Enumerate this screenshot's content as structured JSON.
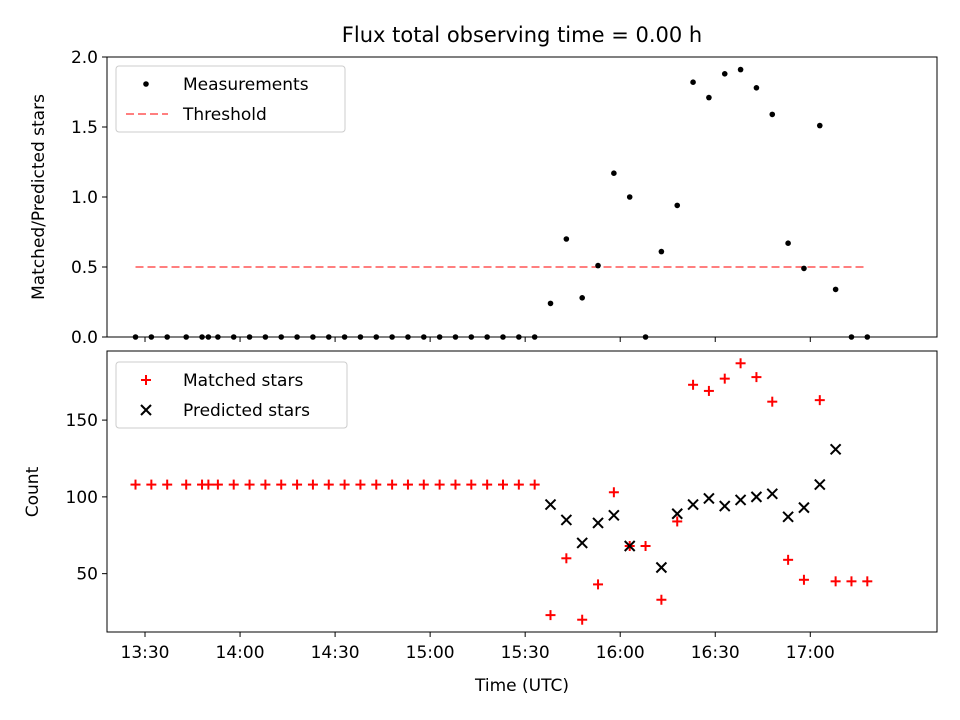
{
  "chart_data": [
    {
      "type": "scatter",
      "title": "Flux total observing time = 0.00 h",
      "ylabel": "Matched/Predicted stars",
      "ylim": [
        0,
        2.0
      ],
      "yticks": [
        "0.0",
        "0.5",
        "1.0",
        "1.5",
        "2.0"
      ],
      "legend": {
        "placement": "top-left",
        "entries": [
          "Measurements",
          "Threshold"
        ]
      },
      "series": [
        {
          "name": "Measurements",
          "color": "#000000",
          "x": [
            "13:27",
            "13:32",
            "13:37",
            "13:43",
            "13:48",
            "13:50",
            "13:53",
            "13:58",
            "14:03",
            "14:08",
            "14:13",
            "14:18",
            "14:23",
            "14:28",
            "14:33",
            "14:38",
            "14:43",
            "14:48",
            "14:53",
            "14:58",
            "15:03",
            "15:08",
            "15:13",
            "15:18",
            "15:23",
            "15:28",
            "15:33",
            "15:38",
            "15:43",
            "15:48",
            "15:53",
            "15:58",
            "16:03",
            "16:08",
            "16:13",
            "16:18",
            "16:23",
            "16:28",
            "16:33",
            "16:38",
            "16:43",
            "16:48",
            "16:53",
            "16:58",
            "17:03",
            "17:08",
            "17:13",
            "17:18"
          ],
          "y": [
            0,
            0,
            0,
            0,
            0,
            0,
            0,
            0,
            0,
            0,
            0,
            0,
            0,
            0,
            0,
            0,
            0,
            0,
            0,
            0,
            0,
            0,
            0,
            0,
            0,
            0,
            0,
            0.24,
            0.7,
            0.28,
            0.51,
            1.17,
            1.0,
            0,
            0.61,
            0.94,
            1.82,
            1.71,
            1.88,
            1.91,
            1.78,
            1.59,
            0.67,
            0.49,
            1.51,
            0.34,
            0,
            0
          ]
        },
        {
          "name": "Threshold",
          "color": "#ff7f7f",
          "x": [
            "13:27",
            "17:18"
          ],
          "y": [
            0.5,
            0.5
          ]
        }
      ]
    },
    {
      "type": "scatter",
      "xlabel": "Time (UTC)",
      "ylabel": "Count",
      "ylim": [
        12,
        195
      ],
      "yticks": [
        "50",
        "100",
        "150"
      ],
      "xlim": [
        "13:18",
        "17:40"
      ],
      "xticks": [
        "13:30",
        "14:00",
        "14:30",
        "15:00",
        "15:30",
        "16:00",
        "16:30",
        "17:00"
      ],
      "legend": {
        "placement": "top-left",
        "entries": [
          "Matched stars",
          "Predicted stars"
        ]
      },
      "series": [
        {
          "name": "Matched stars",
          "color": "#ff0000",
          "x": [
            "13:27",
            "13:32",
            "13:37",
            "13:43",
            "13:48",
            "13:50",
            "13:53",
            "13:58",
            "14:03",
            "14:08",
            "14:13",
            "14:18",
            "14:23",
            "14:28",
            "14:33",
            "14:38",
            "14:43",
            "14:48",
            "14:53",
            "14:58",
            "15:03",
            "15:08",
            "15:13",
            "15:18",
            "15:23",
            "15:28",
            "15:33",
            "15:38",
            "15:43",
            "15:48",
            "15:53",
            "15:58",
            "16:03",
            "16:08",
            "16:13",
            "16:18",
            "16:23",
            "16:28",
            "16:33",
            "16:38",
            "16:43",
            "16:48",
            "16:53",
            "16:58",
            "17:03",
            "17:08",
            "17:13",
            "17:18"
          ],
          "y": [
            108,
            108,
            108,
            108,
            108,
            108,
            108,
            108,
            108,
            108,
            108,
            108,
            108,
            108,
            108,
            108,
            108,
            108,
            108,
            108,
            108,
            108,
            108,
            108,
            108,
            108,
            108,
            23,
            60,
            20,
            43,
            103,
            68,
            68,
            33,
            84,
            173,
            169,
            177,
            187,
            178,
            162,
            59,
            46,
            163,
            45,
            45,
            45
          ]
        },
        {
          "name": "Predicted stars",
          "color": "#000000",
          "x": [
            "15:38",
            "15:43",
            "15:48",
            "15:53",
            "15:58",
            "16:03",
            "16:13",
            "16:18",
            "16:23",
            "16:28",
            "16:33",
            "16:38",
            "16:43",
            "16:48",
            "16:53",
            "16:58",
            "17:03",
            "17:08"
          ],
          "y": [
            95,
            85,
            70,
            83,
            88,
            68,
            54,
            89,
            95,
            99,
            94,
            98,
            100,
            102,
            87,
            93,
            108,
            131
          ]
        }
      ]
    }
  ]
}
